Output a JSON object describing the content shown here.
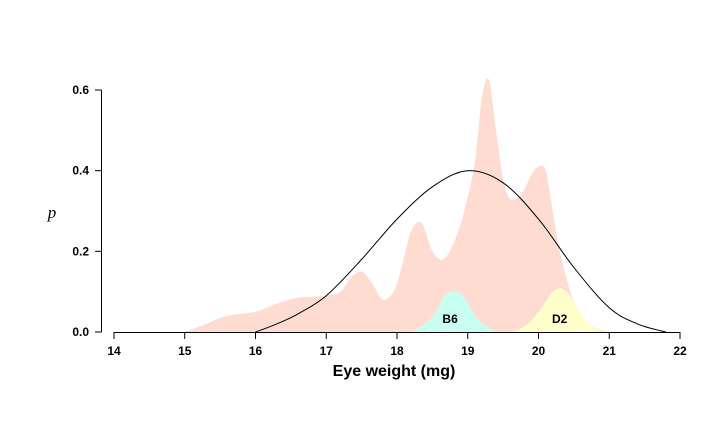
{
  "chart_data": {
    "type": "area",
    "xlabel": "Eye weight (mg)",
    "ylabel": "p",
    "xlim": [
      14,
      22
    ],
    "ylim": [
      0,
      0.6
    ],
    "x_ticks": [
      "14",
      "15",
      "16",
      "17",
      "18",
      "19",
      "20",
      "21",
      "22"
    ],
    "y_ticks": [
      "0.0",
      "0.2",
      "0.4",
      "0.6"
    ],
    "grid": false,
    "series": [
      {
        "kind": "area",
        "color": "#ffdcd2",
        "x": [
          15.0,
          15.3,
          15.6,
          16.0,
          16.3,
          16.6,
          17.0,
          17.2,
          17.35,
          17.5,
          17.65,
          17.8,
          17.95,
          18.05,
          18.2,
          18.35,
          18.5,
          18.65,
          18.8,
          18.95,
          19.1,
          19.2,
          19.3,
          19.4,
          19.5,
          19.6,
          19.75,
          19.9,
          20.0,
          20.1,
          20.2,
          20.3,
          20.45,
          20.6,
          20.8,
          21.0
        ],
        "y": [
          0.0,
          0.02,
          0.04,
          0.05,
          0.07,
          0.085,
          0.09,
          0.1,
          0.135,
          0.15,
          0.12,
          0.08,
          0.1,
          0.15,
          0.25,
          0.27,
          0.2,
          0.18,
          0.22,
          0.3,
          0.42,
          0.58,
          0.625,
          0.5,
          0.38,
          0.33,
          0.34,
          0.39,
          0.41,
          0.4,
          0.3,
          0.2,
          0.1,
          0.04,
          0.01,
          0.0
        ]
      },
      {
        "kind": "area",
        "name": "B6",
        "color": "#c8fff0",
        "x": [
          18.2,
          18.4,
          18.55,
          18.65,
          18.75,
          18.85,
          18.95,
          19.05,
          19.15,
          19.3,
          19.45
        ],
        "y": [
          0.0,
          0.02,
          0.05,
          0.085,
          0.1,
          0.1,
          0.085,
          0.055,
          0.03,
          0.01,
          0.0
        ]
      },
      {
        "kind": "area",
        "name": "D2",
        "color": "#ffffcc",
        "x": [
          19.65,
          19.85,
          20.0,
          20.1,
          20.2,
          20.3,
          20.4,
          20.5,
          20.6,
          20.75,
          20.9
        ],
        "y": [
          0.0,
          0.02,
          0.05,
          0.075,
          0.1,
          0.108,
          0.1,
          0.075,
          0.045,
          0.015,
          0.0
        ]
      },
      {
        "kind": "line",
        "color": "#000000",
        "x": [
          16.0,
          16.3,
          16.6,
          17.0,
          17.5,
          18.0,
          18.5,
          19.0,
          19.5,
          20.0,
          20.5,
          21.0,
          21.4,
          21.8
        ],
        "y": [
          0.0,
          0.02,
          0.045,
          0.09,
          0.18,
          0.28,
          0.36,
          0.4,
          0.37,
          0.28,
          0.16,
          0.06,
          0.02,
          0.0
        ]
      }
    ]
  }
}
